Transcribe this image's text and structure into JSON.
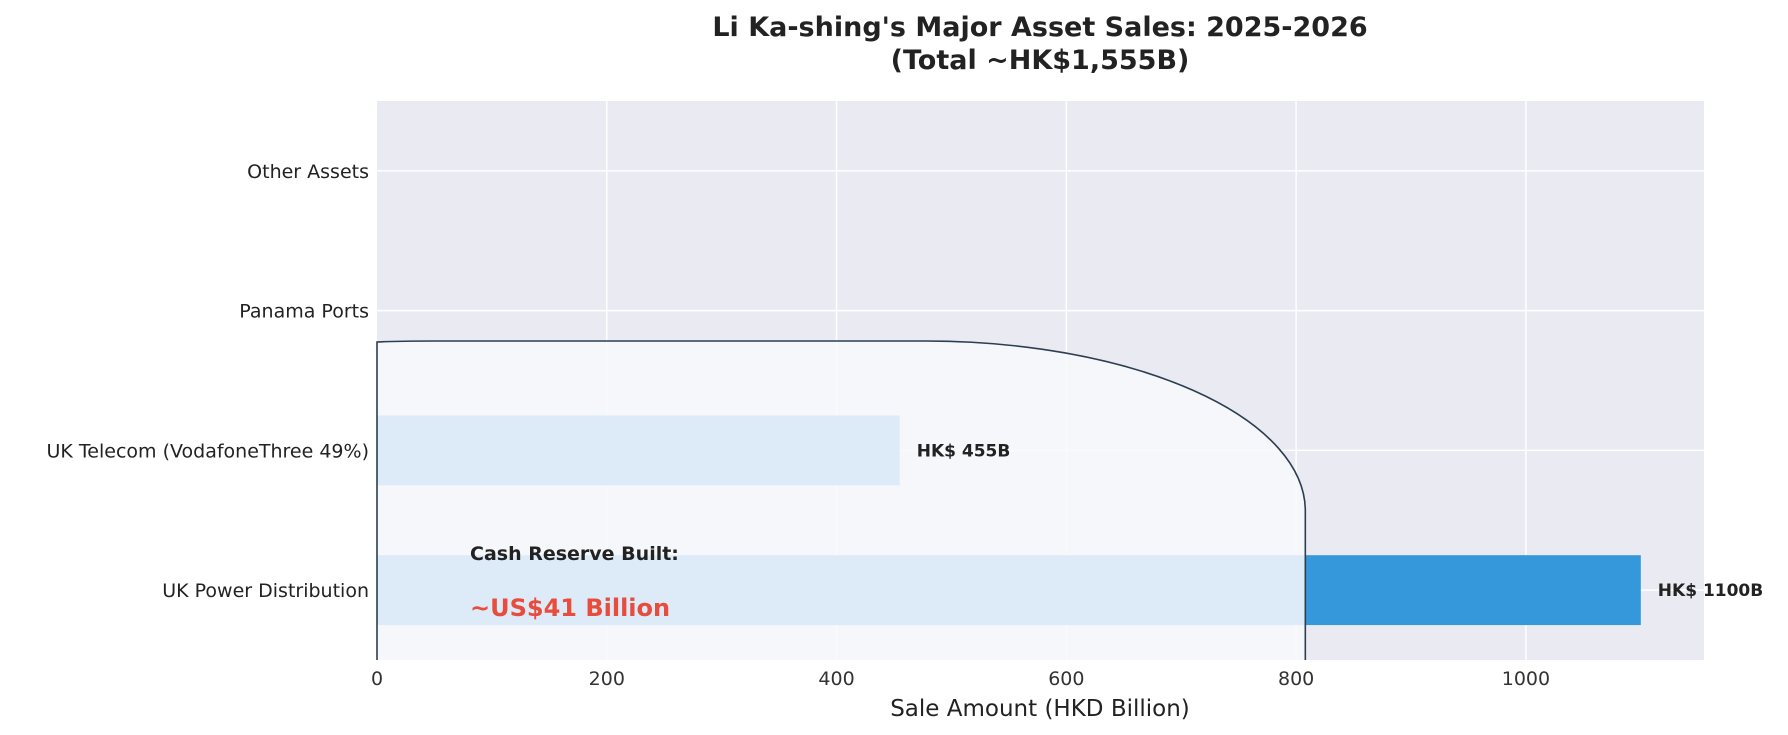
{
  "chart_data": {
    "type": "bar",
    "orientation": "horizontal",
    "title_line1": "Li Ka-shing's Major Asset Sales: 2025-2026",
    "title_line2": "(Total ~HK$1,555B)",
    "xlabel": "Sale Amount (HKD Billion)",
    "ylabel": "",
    "categories": [
      "UK Power Distribution",
      "UK Telecom (VodafoneThree 49%)",
      "Panama Ports",
      "Other Assets"
    ],
    "values": [
      1100,
      455,
      0,
      0
    ],
    "data_labels": [
      "HK$ 1100B",
      "HK$ 455B",
      "",
      ""
    ],
    "xlim": [
      0,
      1155
    ],
    "xticks": [
      0,
      200,
      400,
      600,
      800,
      1000
    ],
    "grid": true,
    "colors": {
      "bar": "#3498db",
      "plot_bg": "#eaeaf2",
      "grid": "#ffffff",
      "overlay": "#f8f9fb",
      "overlay_edge": "#2c3e50",
      "highlight": "#e74c3c"
    },
    "annotation": {
      "heading": "Cash Reserve Built:",
      "value": "~US$41 Billion"
    }
  }
}
